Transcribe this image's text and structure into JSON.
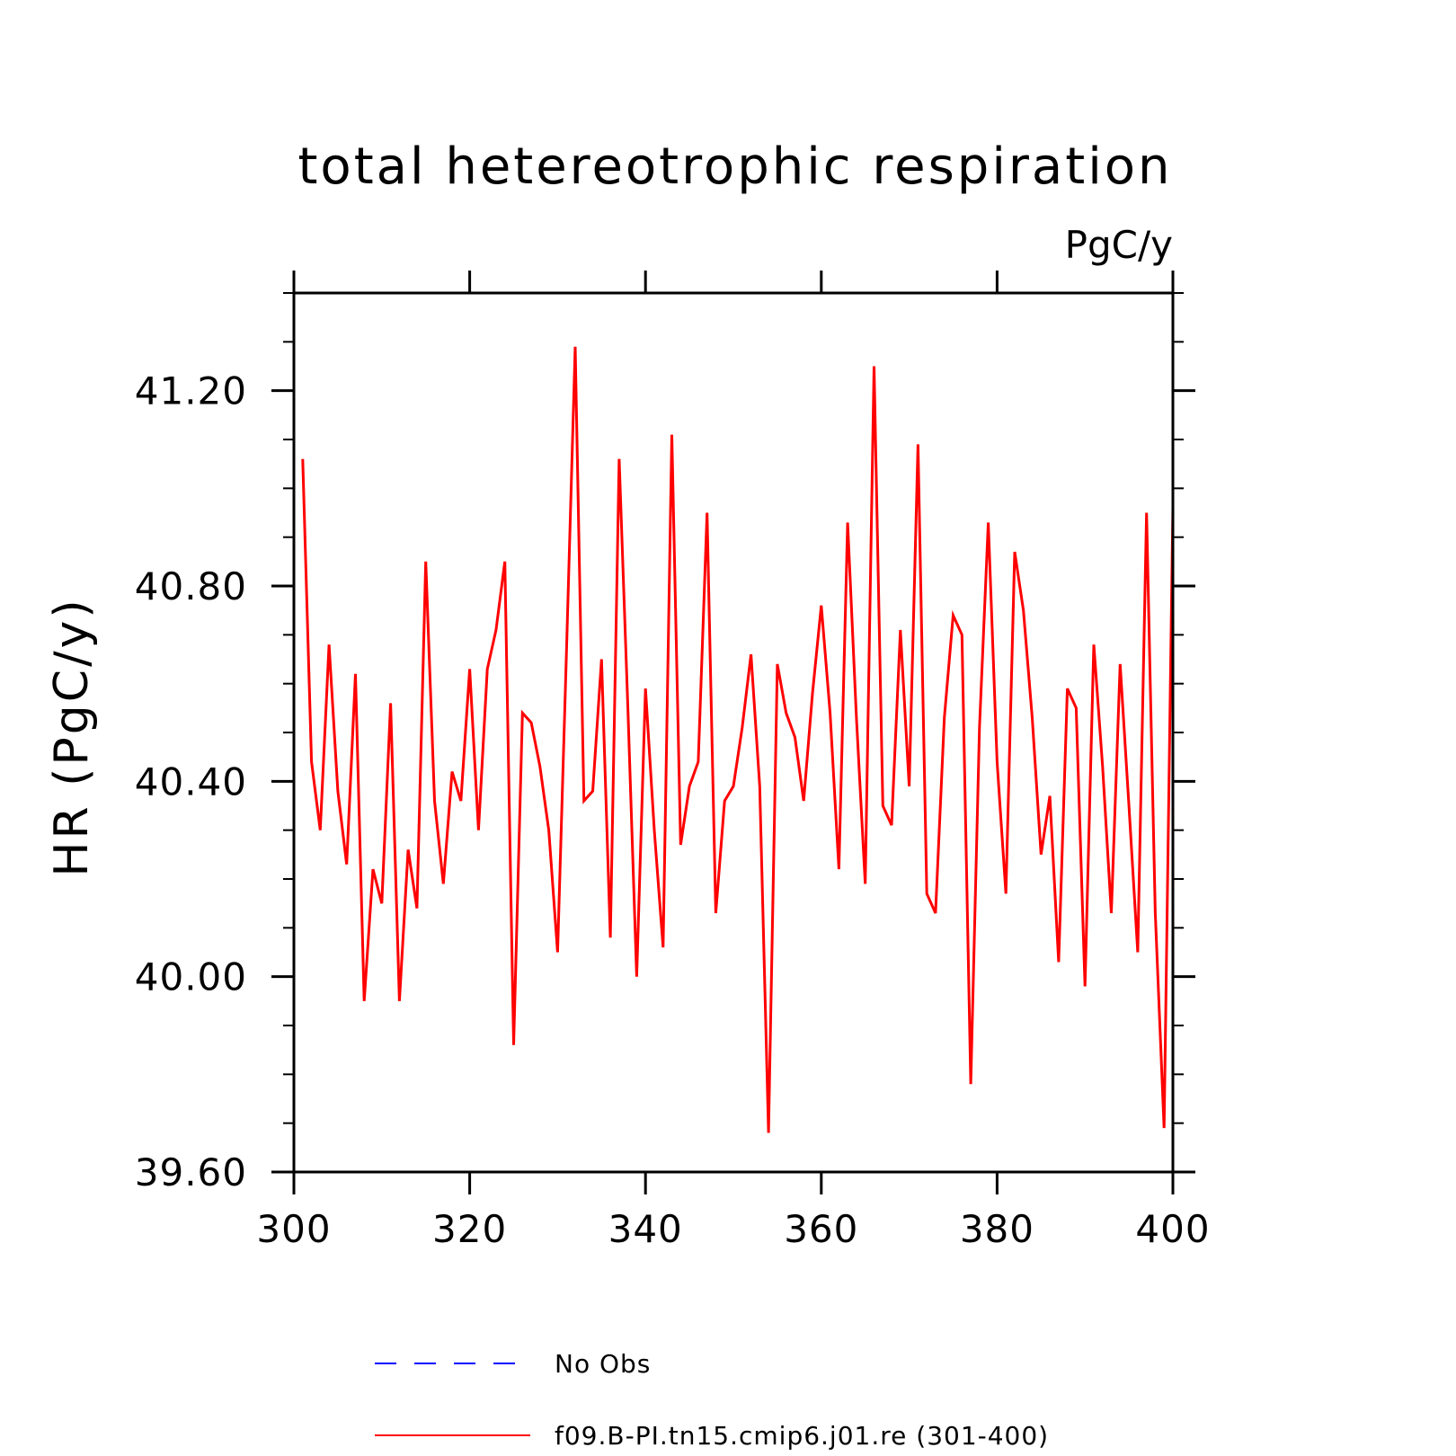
{
  "chart_data": {
    "type": "line",
    "title": "total hetereotrophic respiration",
    "units_label": "PgC/y",
    "ylabel": "HR  (PgC/y)",
    "xlabel": "",
    "xlim": [
      300,
      400
    ],
    "ylim": [
      39.6,
      41.4
    ],
    "x_ticks": [
      "300",
      "320",
      "340",
      "360",
      "380",
      "400"
    ],
    "y_ticks": [
      "39.60",
      "40.00",
      "40.40",
      "40.80",
      "41.20"
    ],
    "series": [
      {
        "name": "No Obs",
        "color": "#0000ff",
        "dash": "dashed",
        "x": [],
        "values": []
      },
      {
        "name": "f09.B-PI.tn15.cmip6.j01.re (301-400)",
        "color": "#ff0000",
        "dash": "solid",
        "x": [
          301,
          302,
          303,
          304,
          305,
          306,
          307,
          308,
          309,
          310,
          311,
          312,
          313,
          314,
          315,
          316,
          317,
          318,
          319,
          320,
          321,
          322,
          323,
          324,
          325,
          326,
          327,
          328,
          329,
          330,
          331,
          332,
          333,
          334,
          335,
          336,
          337,
          338,
          339,
          340,
          341,
          342,
          343,
          344,
          345,
          346,
          347,
          348,
          349,
          350,
          351,
          352,
          353,
          354,
          355,
          356,
          357,
          358,
          359,
          360,
          361,
          362,
          363,
          364,
          365,
          366,
          367,
          368,
          369,
          370,
          371,
          372,
          373,
          374,
          375,
          376,
          377,
          378,
          379,
          380,
          381,
          382,
          383,
          384,
          385,
          386,
          387,
          388,
          389,
          390,
          391,
          392,
          393,
          394,
          395,
          396,
          397,
          398,
          399,
          400
        ],
        "values": [
          41.06,
          40.44,
          40.3,
          40.68,
          40.38,
          40.23,
          40.62,
          39.95,
          40.22,
          40.15,
          40.56,
          39.95,
          40.26,
          40.14,
          40.85,
          40.36,
          40.19,
          40.42,
          40.36,
          40.63,
          40.3,
          40.63,
          40.71,
          40.85,
          39.86,
          40.54,
          40.52,
          40.43,
          40.3,
          40.05,
          40.66,
          41.29,
          40.36,
          40.38,
          40.65,
          40.08,
          41.06,
          40.55,
          40.0,
          40.59,
          40.3,
          40.06,
          41.11,
          40.27,
          40.39,
          40.44,
          40.95,
          40.13,
          40.36,
          40.39,
          40.51,
          40.66,
          40.39,
          39.68,
          40.64,
          40.54,
          40.49,
          40.36,
          40.58,
          40.76,
          40.54,
          40.22,
          40.93,
          40.53,
          40.19,
          41.25,
          40.35,
          40.31,
          40.71,
          40.39,
          41.09,
          40.17,
          40.13,
          40.53,
          40.74,
          40.7,
          39.78,
          40.51,
          40.93,
          40.44,
          40.17,
          40.87,
          40.75,
          40.53,
          40.25,
          40.37,
          40.03,
          40.59,
          40.55,
          39.98,
          40.68,
          40.43,
          40.13,
          40.64,
          40.35,
          40.05,
          40.95,
          40.13,
          39.69,
          40.96
        ]
      }
    ],
    "legend_position": "bottom",
    "grid": false
  }
}
